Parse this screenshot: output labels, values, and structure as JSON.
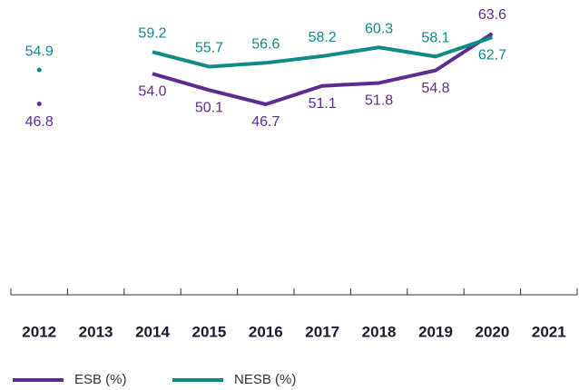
{
  "chart_data": {
    "type": "line",
    "categories": [
      "2012",
      "2013",
      "2014",
      "2015",
      "2016",
      "2017",
      "2018",
      "2019",
      "2020",
      "2021"
    ],
    "series": [
      {
        "name": "ESB (%)",
        "color": "#5b2d90",
        "values": [
          46.8,
          null,
          54.0,
          50.1,
          46.7,
          51.1,
          51.8,
          54.8,
          63.6,
          null
        ],
        "value_labels": [
          "46.8",
          null,
          "54.0",
          "50.1",
          "46.7",
          "51.1",
          "51.8",
          "54.8",
          "63.6",
          null
        ]
      },
      {
        "name": "NESB (%)",
        "color": "#0e8a8a",
        "values": [
          54.9,
          null,
          59.2,
          55.7,
          56.6,
          58.2,
          60.3,
          58.1,
          62.7,
          null
        ],
        "value_labels": [
          "54.9",
          null,
          "59.2",
          "55.7",
          "56.6",
          "58.2",
          "60.3",
          "58.1",
          "62.7",
          null
        ]
      }
    ]
  }
}
